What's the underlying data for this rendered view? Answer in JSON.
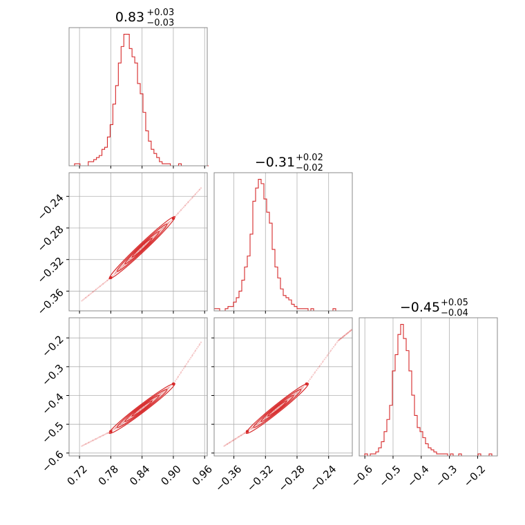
{
  "colors": {
    "series": "#d62728",
    "frame": "#888888",
    "grid": "#b0b0b0",
    "background": "#ffffff"
  },
  "chart_data": [
    {
      "type": "histogram",
      "panel": "diag-0",
      "title": {
        "main": "0.83",
        "sup": "+0.03",
        "sub": "−0.03"
      },
      "xlim": [
        0.7,
        0.965
      ],
      "xticks": [
        0.72,
        0.78,
        0.84,
        0.9,
        0.96
      ],
      "bins": {
        "start": 0.7,
        "width": 0.00525,
        "counts": [
          0,
          0,
          1,
          1,
          0,
          0,
          0,
          2,
          2,
          3,
          4,
          5,
          8,
          9,
          14,
          20,
          30,
          39,
          50,
          58,
          64,
          64,
          57,
          53,
          50,
          40,
          35,
          26,
          17,
          12,
          8,
          6,
          4,
          2,
          1,
          1,
          1,
          0,
          0,
          0,
          1,
          0,
          0,
          0,
          0,
          0,
          0,
          0,
          0,
          0,
          0
        ]
      }
    },
    {
      "type": "histogram",
      "panel": "diag-1",
      "title": {
        "main": "−0.31",
        "sup": "+0.02",
        "sub": "−0.02"
      },
      "xlim": [
        -0.385,
        -0.21
      ],
      "xticks": [
        -0.36,
        -0.32,
        -0.28,
        -0.24
      ],
      "bins": {
        "start": -0.385,
        "width": 0.0035,
        "counts": [
          1,
          1,
          0,
          0,
          1,
          2,
          2,
          4,
          6,
          9,
          14,
          20,
          25,
          35,
          50,
          56,
          60,
          58,
          51,
          45,
          40,
          28,
          20,
          15,
          10,
          7,
          6,
          5,
          3,
          2,
          1,
          1,
          1,
          1,
          0,
          1,
          0,
          0,
          0,
          0,
          0,
          0,
          0,
          1,
          0,
          0,
          0,
          0,
          0,
          0
        ]
      }
    },
    {
      "type": "histogram",
      "panel": "diag-2",
      "title": {
        "main": "−0.45",
        "sup": "+0.05",
        "sub": "−0.04"
      },
      "xlim": [
        -0.62,
        -0.13
      ],
      "xticks": [
        -0.6,
        -0.5,
        -0.4,
        -0.3,
        -0.2
      ],
      "bins": {
        "start": -0.62,
        "width": 0.0098,
        "counts": [
          0,
          0,
          1,
          0,
          1,
          1,
          2,
          4,
          7,
          12,
          18,
          25,
          42,
          50,
          60,
          65,
          58,
          52,
          42,
          30,
          20,
          14,
          12,
          9,
          6,
          4,
          3,
          2,
          1,
          1,
          1,
          1,
          0,
          1,
          0,
          0,
          1,
          0,
          0,
          0,
          0,
          0,
          0,
          1,
          0,
          0,
          0,
          1,
          0,
          0
        ]
      }
    },
    {
      "type": "scatter",
      "panel": "joint-1-0",
      "xlim": [
        0.7,
        0.965
      ],
      "ylim": [
        -0.385,
        -0.21
      ],
      "xticks": [
        0.72,
        0.78,
        0.84,
        0.9,
        0.96
      ],
      "yticks": [
        -0.24,
        -0.28,
        -0.32,
        -0.36
      ],
      "ridge": [
        [
          0.725,
          -0.372
        ],
        [
          0.78,
          -0.343
        ],
        [
          0.84,
          -0.305
        ],
        [
          0.9,
          -0.268
        ],
        [
          0.955,
          -0.228
        ]
      ],
      "contours": true
    },
    {
      "type": "scatter",
      "panel": "joint-2-0",
      "xlim": [
        0.7,
        0.965
      ],
      "ylim": [
        -0.61,
        -0.13
      ],
      "xticks": [
        0.72,
        0.78,
        0.84,
        0.9,
        0.96
      ],
      "yticks": [
        -0.2,
        -0.3,
        -0.4,
        -0.5,
        -0.6
      ],
      "ridge": [
        [
          0.725,
          -0.575
        ],
        [
          0.78,
          -0.525
        ],
        [
          0.84,
          -0.445
        ],
        [
          0.9,
          -0.36
        ],
        [
          0.955,
          -0.21
        ]
      ],
      "contours": true
    },
    {
      "type": "scatter",
      "panel": "joint-2-1",
      "xlim": [
        -0.385,
        -0.21
      ],
      "ylim": [
        -0.61,
        -0.13
      ],
      "xticks": [
        -0.36,
        -0.32,
        -0.28,
        -0.24
      ],
      "yticks": [],
      "ridge": [
        [
          -0.372,
          -0.575
        ],
        [
          -0.343,
          -0.525
        ],
        [
          -0.305,
          -0.445
        ],
        [
          -0.268,
          -0.36
        ],
        [
          -0.228,
          -0.21
        ],
        [
          -0.21,
          -0.17
        ]
      ],
      "contours": true
    }
  ]
}
